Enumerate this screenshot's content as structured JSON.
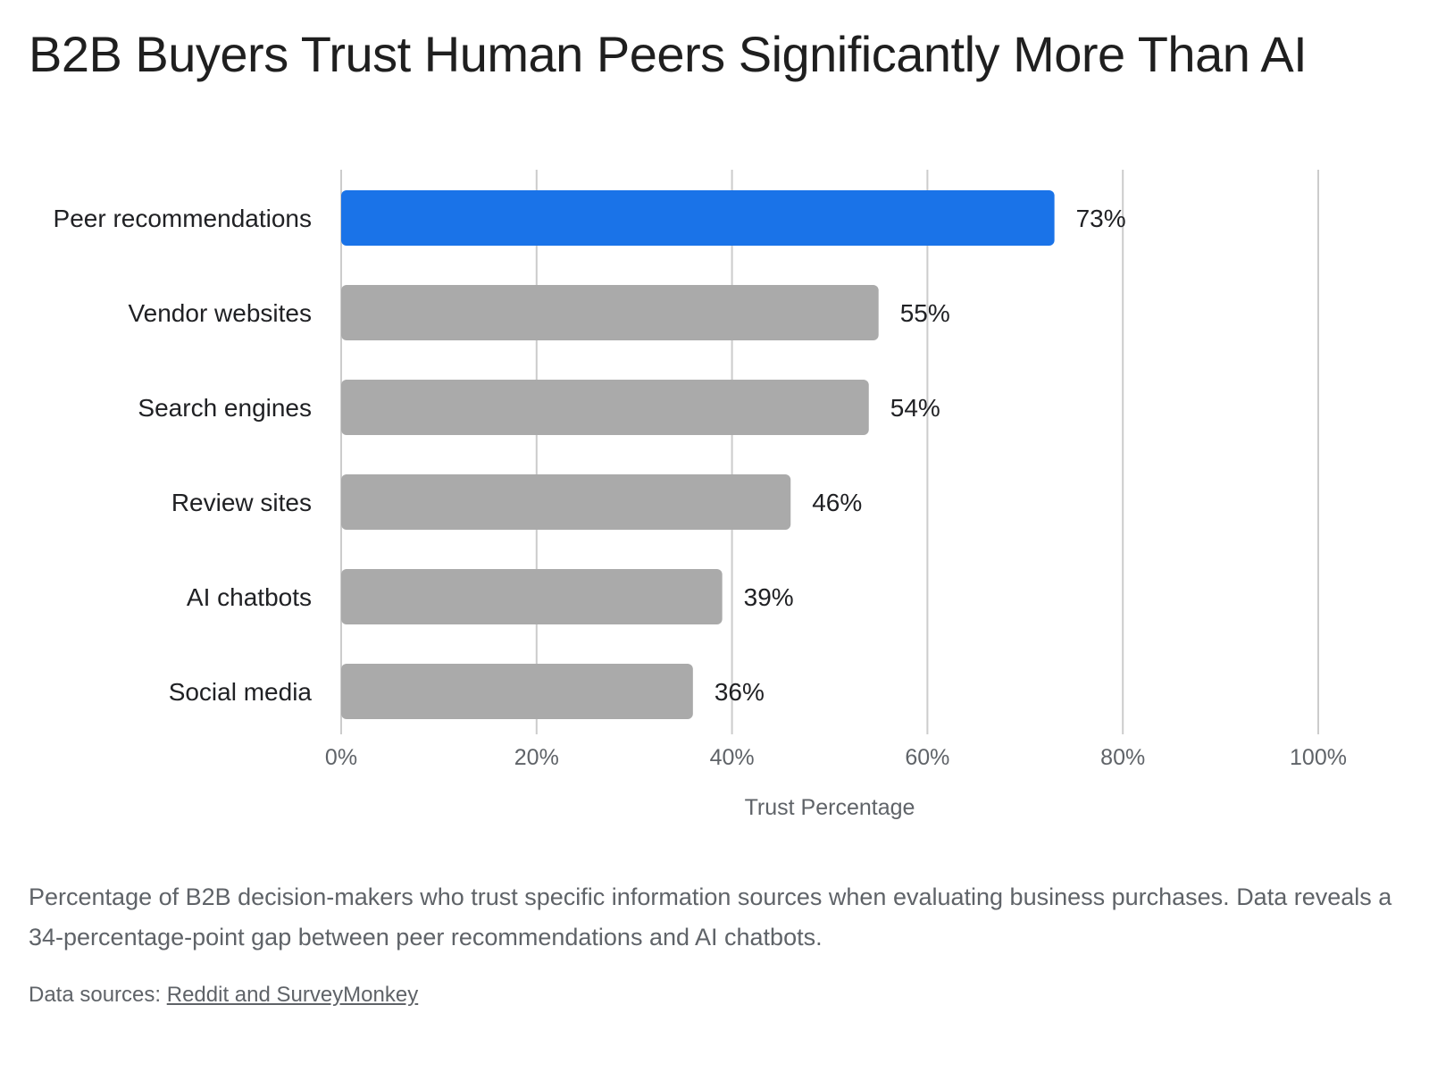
{
  "chart_data": {
    "type": "bar",
    "orientation": "horizontal",
    "title": "B2B Buyers Trust Human Peers Significantly More Than AI",
    "categories": [
      "Peer recommendations",
      "Vendor websites",
      "Search engines",
      "Review sites",
      "AI chatbots",
      "Social media"
    ],
    "values": [
      73,
      55,
      54,
      46,
      39,
      36
    ],
    "value_labels": [
      "73%",
      "55%",
      "54%",
      "46%",
      "39%",
      "36%"
    ],
    "xlabel": "Trust Percentage",
    "ylabel": "",
    "xlim": [
      0,
      100
    ],
    "x_ticks": [
      0,
      20,
      40,
      60,
      80,
      100
    ],
    "x_tick_labels": [
      "0%",
      "20%",
      "40%",
      "60%",
      "80%",
      "100%"
    ],
    "grid": true,
    "highlight_index": 0,
    "colors": {
      "highlight": "#1a73e8",
      "default": "#aaaaaa",
      "grid": "#cccccc"
    }
  },
  "caption": "Percentage of B2B decision-makers who trust specific information sources when evaluating business purchases. Data reveals a 34-percentage-point gap between peer recommendations and AI chatbots.",
  "source": {
    "prefix": "Data sources: ",
    "link_text": "Reddit and SurveyMonkey"
  }
}
